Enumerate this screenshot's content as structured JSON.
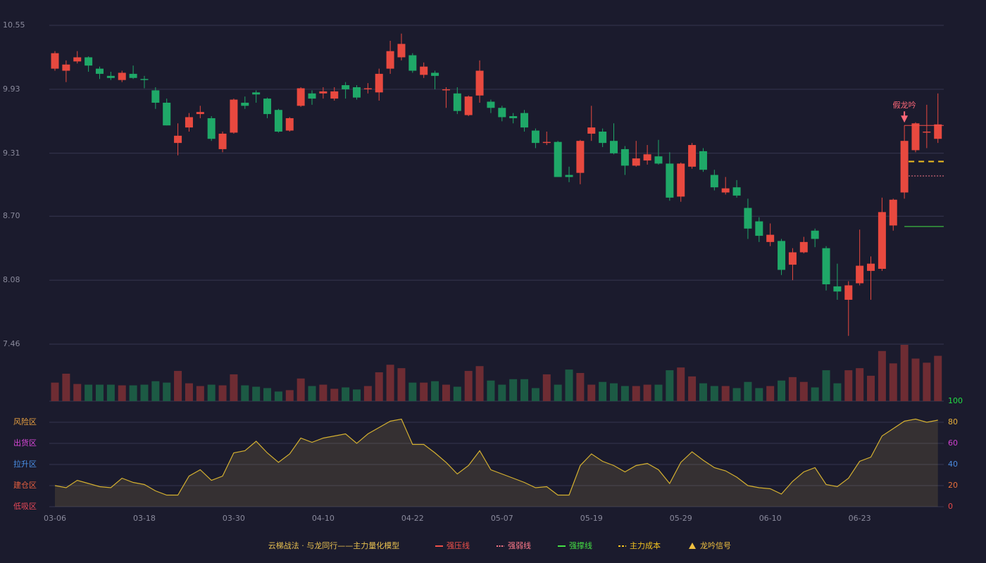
{
  "chart_data": [
    {
      "type": "candlestick",
      "ylim": [
        7.46,
        10.55
      ],
      "yticks": [
        7.46,
        8.08,
        {
          "value": 8.7,
          "label": "8.70"
        },
        9.31,
        9.93,
        10.55
      ],
      "grid": true,
      "up_color": "#e8493f",
      "down_color": "#1fa868",
      "open": [
        10.13,
        10.11,
        10.2,
        10.24,
        10.13,
        10.06,
        10.02,
        10.08,
        10.03,
        9.92,
        9.8,
        9.41,
        9.56,
        9.69,
        9.65,
        9.35,
        9.51,
        9.8,
        9.9,
        9.84,
        9.73,
        9.53,
        9.77,
        9.89,
        9.89,
        9.84,
        9.97,
        9.95,
        9.93,
        9.9,
        10.13,
        10.24,
        10.26,
        10.07,
        10.09,
        9.92,
        9.89,
        9.68,
        9.87,
        9.81,
        9.75,
        9.67,
        9.7,
        9.53,
        9.41,
        9.42,
        9.1,
        9.12,
        9.5,
        9.52,
        9.43,
        9.35,
        9.19,
        9.24,
        9.28,
        9.21,
        8.89,
        9.18,
        9.33,
        9.1,
        8.93,
        8.98,
        8.78,
        8.65,
        8.45,
        8.46,
        8.23,
        8.35,
        8.56,
        8.39,
        8.02,
        7.89,
        8.05,
        8.17,
        8.19,
        8.61,
        8.93,
        9.34,
        9.51,
        9.45
      ],
      "high": [
        10.3,
        10.21,
        10.3,
        10.25,
        10.15,
        10.1,
        10.11,
        10.16,
        10.06,
        9.95,
        9.84,
        9.6,
        9.7,
        9.77,
        9.67,
        9.52,
        9.84,
        9.86,
        9.92,
        9.85,
        9.74,
        9.66,
        9.95,
        9.92,
        9.95,
        9.95,
        10.0,
        9.97,
        9.99,
        10.13,
        10.4,
        10.47,
        10.28,
        10.19,
        10.11,
        9.95,
        9.95,
        9.87,
        10.21,
        9.83,
        9.77,
        9.7,
        9.73,
        9.55,
        9.52,
        9.43,
        9.18,
        9.44,
        9.77,
        9.55,
        9.6,
        9.38,
        9.43,
        9.39,
        9.44,
        9.32,
        9.22,
        9.41,
        9.36,
        9.15,
        9.08,
        9.05,
        8.87,
        8.69,
        8.63,
        8.48,
        8.39,
        8.5,
        8.58,
        8.41,
        8.24,
        8.07,
        8.57,
        8.31,
        8.88,
        8.87,
        9.58,
        9.61,
        9.78,
        9.89
      ],
      "low": [
        10.11,
        10.0,
        10.18,
        10.1,
        10.03,
        10.02,
        10.0,
        10.03,
        9.94,
        9.74,
        9.58,
        9.29,
        9.52,
        9.65,
        9.43,
        9.32,
        9.5,
        9.74,
        9.8,
        9.65,
        9.51,
        9.52,
        9.76,
        9.78,
        9.84,
        9.82,
        9.84,
        9.83,
        9.89,
        9.82,
        10.08,
        10.21,
        10.09,
        10.04,
        9.93,
        9.75,
        9.69,
        9.67,
        9.8,
        9.7,
        9.62,
        9.6,
        9.52,
        9.36,
        9.39,
        9.08,
        9.03,
        9.01,
        9.43,
        9.37,
        9.3,
        9.1,
        9.18,
        9.2,
        9.2,
        8.85,
        8.84,
        9.16,
        9.13,
        8.95,
        8.91,
        8.88,
        8.48,
        8.45,
        8.41,
        8.13,
        8.08,
        8.34,
        8.4,
        7.98,
        7.89,
        7.54,
        8.03,
        7.89,
        8.17,
        8.56,
        8.87,
        9.32,
        9.36,
        9.41
      ],
      "close": [
        10.28,
        10.17,
        10.24,
        10.16,
        10.08,
        10.04,
        10.09,
        10.04,
        10.02,
        9.8,
        9.58,
        9.48,
        9.66,
        9.71,
        9.45,
        9.5,
        9.83,
        9.77,
        9.88,
        9.69,
        9.52,
        9.65,
        9.94,
        9.84,
        9.91,
        9.91,
        9.93,
        9.85,
        9.94,
        10.08,
        10.3,
        10.37,
        10.11,
        10.15,
        10.06,
        9.93,
        9.72,
        9.86,
        10.11,
        9.75,
        9.66,
        9.65,
        9.56,
        9.41,
        9.42,
        9.08,
        9.08,
        9.43,
        9.56,
        9.41,
        9.31,
        9.19,
        9.26,
        9.3,
        9.21,
        8.88,
        9.21,
        9.39,
        9.15,
        8.98,
        8.97,
        8.9,
        8.58,
        8.51,
        8.52,
        8.18,
        8.35,
        8.45,
        8.48,
        8.04,
        7.97,
        8.03,
        8.22,
        8.24,
        8.74,
        8.86,
        9.43,
        9.6,
        9.52,
        9.59
      ],
      "legend_title": "云梯战法 · 与龙同行——主力量化模型",
      "levels": [
        {
          "name": "强压线",
          "value": 9.58,
          "color": "#f0504a",
          "style": "solid"
        },
        {
          "name": "强弱线",
          "value": 9.09,
          "color": "#ff7a8a",
          "style": "dotted"
        },
        {
          "name": "强撑线",
          "value": 8.6,
          "color": "#44e044",
          "style": "solid"
        },
        {
          "name": "主力成本",
          "value": 9.23,
          "color": "#f0c020",
          "style": "dashed"
        }
      ],
      "signals": [
        {
          "name": "龙吟信号",
          "label": "假龙吟",
          "index": 76,
          "color": "#f0c040",
          "label_color": "#ff6878"
        }
      ]
    },
    {
      "type": "bar",
      "up_color": "#6e2c33",
      "down_color": "#1c5a44",
      "values": [
        27,
        40,
        25,
        24,
        24,
        24,
        23,
        23,
        24,
        29,
        27,
        44,
        26,
        22,
        24,
        23,
        39,
        23,
        21,
        19,
        14,
        16,
        33,
        22,
        24,
        18,
        20,
        17,
        22,
        42,
        53,
        48,
        27,
        27,
        29,
        24,
        21,
        44,
        51,
        30,
        24,
        32,
        32,
        19,
        39,
        24,
        46,
        41,
        24,
        28,
        26,
        22,
        22,
        24,
        24,
        45,
        49,
        36,
        26,
        22,
        22,
        19,
        28,
        19,
        22,
        30,
        35,
        28,
        20,
        45,
        26,
        45,
        48,
        37,
        73,
        55,
        82,
        62,
        56,
        66
      ]
    },
    {
      "type": "area",
      "color": "#d4b030",
      "fill": "rgba(190,160,80,0.16)",
      "ylim": [
        0,
        100
      ],
      "yticks": [
        0,
        20,
        40,
        60,
        80,
        100
      ],
      "ytick_colors": [
        "#e84848",
        "#e8703a",
        "#4a8ae0",
        "#d040d0",
        "#e8b03a",
        "#22dd44"
      ],
      "grid": true,
      "zones": [
        {
          "label": "风险区",
          "value": 80,
          "color": "#e8a040"
        },
        {
          "label": "出货区",
          "value": 60,
          "color": "#d848d8"
        },
        {
          "label": "拉升区",
          "value": 40,
          "color": "#4a90e8"
        },
        {
          "label": "建仓区",
          "value": 20,
          "color": "#e86040"
        },
        {
          "label": "低吸区",
          "value": 0,
          "color": "#e84858"
        }
      ],
      "categories": [
        "03-06",
        null,
        null,
        null,
        null,
        null,
        null,
        null,
        "03-18",
        null,
        null,
        null,
        null,
        null,
        null,
        null,
        "03-30",
        null,
        null,
        null,
        null,
        null,
        null,
        null,
        "04-10",
        null,
        null,
        null,
        null,
        null,
        null,
        null,
        "04-22",
        null,
        null,
        null,
        null,
        null,
        null,
        null,
        "05-07",
        null,
        null,
        null,
        null,
        null,
        null,
        null,
        "05-19",
        null,
        null,
        null,
        null,
        null,
        null,
        null,
        "05-29",
        null,
        null,
        null,
        null,
        null,
        null,
        null,
        "06-10",
        null,
        null,
        null,
        null,
        null,
        null,
        null,
        "06-23",
        null,
        null,
        null,
        null,
        null,
        null,
        null
      ],
      "values": [
        20,
        18,
        25,
        22,
        19,
        18,
        27,
        23,
        21,
        15,
        11,
        11,
        29,
        35,
        25,
        29,
        51,
        53,
        62,
        51,
        42,
        50,
        65,
        61,
        65,
        67,
        69,
        60,
        69,
        75,
        81,
        83,
        59,
        59,
        51,
        42,
        31,
        39,
        53,
        35,
        31,
        27,
        23,
        18,
        19,
        11,
        11,
        39,
        50,
        43,
        39,
        33,
        39,
        41,
        35,
        22,
        42,
        52,
        44,
        37,
        34,
        28,
        20,
        18,
        17,
        12,
        24,
        33,
        37,
        21,
        19,
        27,
        43,
        47,
        67,
        74,
        81,
        83,
        80,
        82
      ]
    }
  ]
}
